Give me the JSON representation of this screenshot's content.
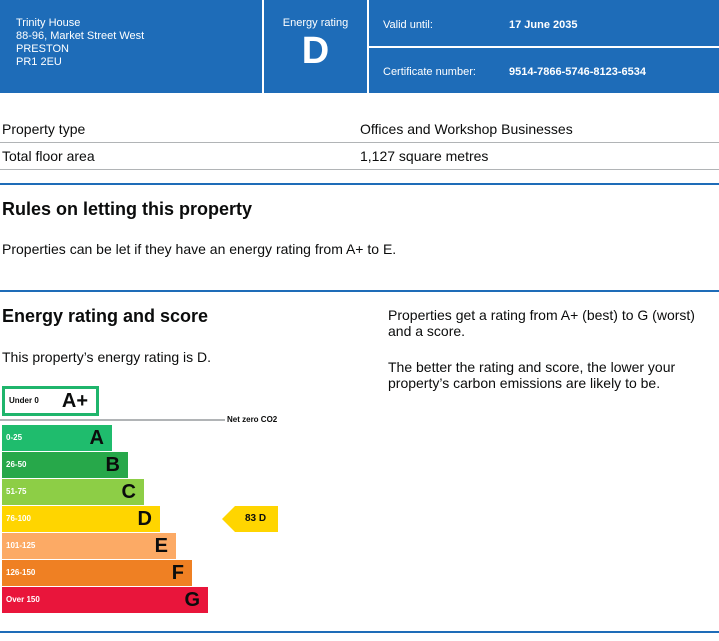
{
  "header": {
    "address": [
      "Trinity House",
      "88-96, Market Street West",
      "PRESTON",
      "PR1 2EU"
    ],
    "rating_label": "Energy rating",
    "rating": "D",
    "valid_until_label": "Valid until:",
    "valid_until": "17 June 2035",
    "certificate_label": "Certificate number:",
    "certificate_number": "9514-7866-5746-8123-6534"
  },
  "property": {
    "rows": [
      [
        "Property type",
        "Offices and Workshop Businesses"
      ],
      [
        "Total floor area",
        "1,127 square metres"
      ]
    ]
  },
  "letting": {
    "title": "Rules on letting this property",
    "text": "Properties can be let if they have an energy rating from A+ to E."
  },
  "energy": {
    "title": "Energy rating and score",
    "text": "This property’s energy rating is D.",
    "notes": [
      "Properties get a rating from A+ (best) to G (worst) and a score.",
      "The better the rating and score, the lower your property’s carbon emissions are likely to be."
    ],
    "bands": [
      {
        "range": "Under 0",
        "letter": "A+",
        "color": "#1fb56c"
      },
      {
        "range": "0-25",
        "letter": "A",
        "color": "#1fbc6d"
      },
      {
        "range": "26-50",
        "letter": "B",
        "color": "#27a84a"
      },
      {
        "range": "51-75",
        "letter": "C",
        "color": "#8dce46"
      },
      {
        "range": "76-100",
        "letter": "D",
        "color": "#ffd500"
      },
      {
        "range": "101-125",
        "letter": "E",
        "color": "#fcaa65"
      },
      {
        "range": "126-150",
        "letter": "F",
        "color": "#ef8023"
      },
      {
        "range": "Over 150",
        "letter": "G",
        "color": "#e9153b"
      }
    ],
    "net_zero": "Net zero CO2",
    "current": {
      "score": 83,
      "letter": "D"
    }
  }
}
